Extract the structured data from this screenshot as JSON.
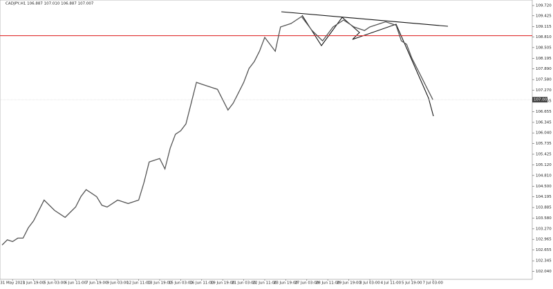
{
  "chart_data": {
    "type": "line",
    "title": "CADJPY,H1  106.887 107.010 106.887 107.007",
    "price_label": "107.007",
    "color": "#555555",
    "level": 108.85,
    "level_color": "#e03030",
    "categories": [
      null,
      null,
      "31 May 2023",
      null,
      null,
      null,
      "1 Jun 19:00",
      null,
      null,
      null,
      "5 Jun 03:00",
      null,
      null,
      null,
      "6 Jun 11:00",
      null,
      null,
      null,
      "7 Jun 19:00",
      null,
      null,
      null,
      "9 Jun 03:00",
      null,
      null,
      null,
      "12 Jun 11:00",
      null,
      null,
      null,
      "13 Jun 19:00",
      null,
      null,
      null,
      "15 Jun 03:00",
      null,
      null,
      null,
      "16 Jun 11:00",
      null,
      null,
      null,
      "19 Jun 19:00",
      null,
      null,
      null,
      "21 Jun 03:00",
      null,
      null,
      null,
      "22 Jun 11:00",
      null,
      null,
      null,
      "23 Jun 19:00",
      null,
      null,
      null,
      "27 Jun 03:00",
      null,
      null,
      null,
      "28 Jun 11:00",
      null,
      null,
      null,
      "29 Jun 19:00",
      null,
      null,
      null,
      "3 Jul 03:00",
      null,
      null,
      null,
      "4 Jul 11:00",
      null,
      null,
      null,
      "5 Jul 19:00",
      null,
      null,
      null,
      "7 Jul 03:00"
    ],
    "values": [
      102.8,
      102.95,
      102.9,
      103.0,
      103.0,
      103.3,
      103.5,
      103.8,
      104.1,
      103.95,
      103.8,
      103.7,
      103.6,
      103.75,
      103.9,
      104.2,
      104.4,
      104.3,
      104.2,
      103.95,
      103.9,
      104.0,
      104.1,
      104.05,
      104.0,
      104.05,
      104.1,
      104.6,
      105.2,
      105.25,
      105.3,
      105.0,
      105.6,
      106.0,
      106.1,
      106.3,
      106.9,
      107.5,
      107.45,
      107.4,
      107.35,
      107.3,
      107.0,
      106.7,
      106.9,
      107.2,
      107.5,
      107.9,
      108.1,
      108.4,
      108.8,
      108.6,
      108.4,
      109.1,
      109.15,
      109.2,
      109.3,
      109.4,
      109.2,
      109.0,
      108.85,
      108.7,
      108.9,
      109.1,
      109.2,
      109.3,
      109.2,
      109.1,
      109.05,
      109.0,
      109.1,
      109.15,
      109.2,
      109.25,
      109.2,
      109.15,
      108.7,
      108.6,
      108.2,
      107.9,
      107.6,
      107.3,
      107.0
    ],
    "ylim": [
      101.81,
      109.88
    ],
    "yticks": [
      {
        "value": 109.72,
        "label": "109.720"
      },
      {
        "value": 109.425,
        "label": "109.425"
      },
      {
        "value": 109.115,
        "label": "109.115"
      },
      {
        "value": 108.81,
        "label": "108.810"
      },
      {
        "value": 108.505,
        "label": "108.505"
      },
      {
        "value": 108.195,
        "label": "108.195"
      },
      {
        "value": 107.89,
        "label": "107.890"
      },
      {
        "value": 107.58,
        "label": "107.580"
      },
      {
        "value": 107.27,
        "label": "107.270"
      },
      {
        "value": 106.965,
        "label": "106.965"
      },
      {
        "value": 106.655,
        "label": "106.655"
      },
      {
        "value": 106.345,
        "label": "106.345"
      },
      {
        "value": 106.04,
        "label": "106.040"
      },
      {
        "value": 105.735,
        "label": "105.735"
      },
      {
        "value": 105.425,
        "label": "105.425"
      },
      {
        "value": 105.12,
        "label": "105.120"
      },
      {
        "value": 104.81,
        "label": "104.810"
      },
      {
        "value": 104.5,
        "label": "104.500"
      },
      {
        "value": 104.195,
        "label": "104.195"
      },
      {
        "value": 103.885,
        "label": "103.885"
      },
      {
        "value": 103.58,
        "label": "103.580"
      },
      {
        "value": 103.27,
        "label": "103.270"
      },
      {
        "value": 102.965,
        "label": "102.965"
      },
      {
        "value": 102.655,
        "label": "102.655"
      },
      {
        "value": 102.345,
        "label": "102.345"
      },
      {
        "value": 102.04,
        "label": "102.040"
      }
    ]
  }
}
